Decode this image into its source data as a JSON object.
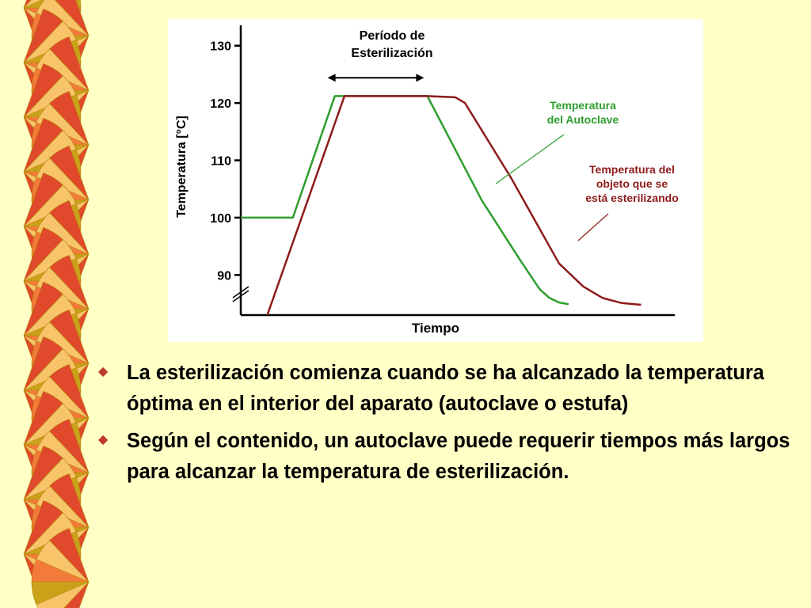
{
  "slide": {
    "bullets": [
      "La esterilización comienza cuando se ha alcanzado la temperatura óptima en el interior del aparato (autoclave o estufa)",
      "Según el contenido, un autoclave puede requerir tiempos más largos para alcanzar la temperatura de esterilización."
    ],
    "bullet_icon": "diamond-bullet-icon",
    "decoration_icon": "fan-border-icon",
    "colors": {
      "background": "#FFFFC6",
      "fan_red": "#E0492B",
      "fan_orange": "#F47A3A",
      "fan_gold": "#C9A21A",
      "fan_light": "#F7C46A",
      "autoclave_line": "#2E9E2E",
      "object_line": "#8E1B1B"
    }
  },
  "chart_data": {
    "type": "line",
    "xlabel": "Tiempo",
    "ylabel": "Temperatura [°C]",
    "ylim": [
      83,
      133
    ],
    "yticks": [
      90,
      100,
      110,
      120,
      130
    ],
    "axis_break": true,
    "x_ticks_shown": false,
    "grid": false,
    "annotations": [
      {
        "id": "period",
        "text": [
          "Período de",
          "Esterilización"
        ],
        "arrow_from_x": 18,
        "arrow_to_x": 38,
        "arrow_y": 124.4
      },
      {
        "id": "autoclave",
        "text": [
          "Temperatura",
          "del Autoclave"
        ],
        "color": "#2E9E2E",
        "points_to_series": 0
      },
      {
        "id": "object",
        "text": [
          "Temperatura del",
          "objeto que se",
          "está esterilizando"
        ],
        "color": "#8E1B1B",
        "points_to_series": 1
      }
    ],
    "series": [
      {
        "name": "Temperatura del Autoclave",
        "color": "#2E9E2E",
        "x": [
          0,
          10.8,
          19.5,
          38.7,
          50.0,
          58.0,
          62.0,
          64.0,
          66.0,
          68.0
        ],
        "y": [
          100,
          100,
          121.2,
          121.2,
          103.0,
          92.5,
          87.5,
          86.0,
          85.2,
          84.9
        ]
      },
      {
        "name": "Temperatura del objeto que se está esterilizando",
        "color": "#8E1B1B",
        "x": [
          5.5,
          21.5,
          38.7,
          44.5,
          46.5,
          56.0,
          66.0,
          71.0,
          75.0,
          79.0,
          83.0
        ],
        "y": [
          83,
          121.2,
          121.2,
          121.0,
          120.0,
          107.0,
          92.0,
          88.0,
          86.0,
          85.1,
          84.8
        ]
      }
    ]
  }
}
